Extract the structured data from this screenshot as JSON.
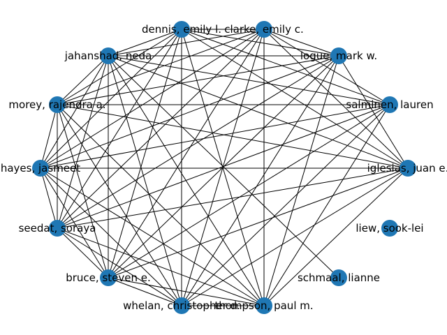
{
  "colors": {
    "node": "#1f77b4",
    "edge": "#000000",
    "label": "#000000",
    "background": "#ffffff"
  },
  "nodes": [
    {
      "id": "dennis",
      "label": "dennis, emily l."
    },
    {
      "id": "clarke",
      "label": "clarke, emily c."
    },
    {
      "id": "jahanshad",
      "label": "jahanshad, neda"
    },
    {
      "id": "logue",
      "label": "logue, mark w."
    },
    {
      "id": "morey",
      "label": "morey, rajendra a."
    },
    {
      "id": "salminen",
      "label": "salminen, lauren"
    },
    {
      "id": "hayes",
      "label": "hayes, jasmeet"
    },
    {
      "id": "iglesias",
      "label": "iglesias, juan e."
    },
    {
      "id": "seedat",
      "label": "seedat, soraya"
    },
    {
      "id": "liew",
      "label": "liew, sook-lei"
    },
    {
      "id": "bruce",
      "label": "bruce, steven e."
    },
    {
      "id": "schmaal",
      "label": "schmaal, lianne"
    },
    {
      "id": "whelan",
      "label": "whelan, christopher d."
    },
    {
      "id": "thompson",
      "label": "thompson, paul m."
    }
  ],
  "edges": [
    [
      "dennis",
      "clarke"
    ],
    [
      "dennis",
      "jahanshad"
    ],
    [
      "dennis",
      "logue"
    ],
    [
      "dennis",
      "morey"
    ],
    [
      "dennis",
      "salminen"
    ],
    [
      "dennis",
      "hayes"
    ],
    [
      "dennis",
      "iglesias"
    ],
    [
      "dennis",
      "seedat"
    ],
    [
      "dennis",
      "bruce"
    ],
    [
      "dennis",
      "whelan"
    ],
    [
      "dennis",
      "thompson"
    ],
    [
      "clarke",
      "jahanshad"
    ],
    [
      "clarke",
      "logue"
    ],
    [
      "clarke",
      "morey"
    ],
    [
      "clarke",
      "salminen"
    ],
    [
      "clarke",
      "hayes"
    ],
    [
      "clarke",
      "iglesias"
    ],
    [
      "clarke",
      "seedat"
    ],
    [
      "clarke",
      "bruce"
    ],
    [
      "clarke",
      "whelan"
    ],
    [
      "clarke",
      "thompson"
    ],
    [
      "jahanshad",
      "logue"
    ],
    [
      "jahanshad",
      "morey"
    ],
    [
      "jahanshad",
      "salminen"
    ],
    [
      "jahanshad",
      "hayes"
    ],
    [
      "jahanshad",
      "iglesias"
    ],
    [
      "jahanshad",
      "seedat"
    ],
    [
      "jahanshad",
      "bruce"
    ],
    [
      "jahanshad",
      "whelan"
    ],
    [
      "jahanshad",
      "thompson"
    ],
    [
      "logue",
      "morey"
    ],
    [
      "logue",
      "hayes"
    ],
    [
      "logue",
      "iglesias"
    ],
    [
      "logue",
      "seedat"
    ],
    [
      "logue",
      "bruce"
    ],
    [
      "logue",
      "whelan"
    ],
    [
      "logue",
      "thompson"
    ],
    [
      "morey",
      "salminen"
    ],
    [
      "morey",
      "hayes"
    ],
    [
      "morey",
      "iglesias"
    ],
    [
      "morey",
      "seedat"
    ],
    [
      "morey",
      "bruce"
    ],
    [
      "morey",
      "whelan"
    ],
    [
      "morey",
      "thompson"
    ],
    [
      "salminen",
      "hayes"
    ],
    [
      "salminen",
      "seedat"
    ],
    [
      "salminen",
      "bruce"
    ],
    [
      "salminen",
      "whelan"
    ],
    [
      "salminen",
      "thompson"
    ],
    [
      "hayes",
      "iglesias"
    ],
    [
      "hayes",
      "seedat"
    ],
    [
      "hayes",
      "bruce"
    ],
    [
      "hayes",
      "whelan"
    ],
    [
      "hayes",
      "thompson"
    ],
    [
      "iglesias",
      "seedat"
    ],
    [
      "iglesias",
      "bruce"
    ],
    [
      "iglesias",
      "whelan"
    ],
    [
      "iglesias",
      "thompson"
    ],
    [
      "seedat",
      "bruce"
    ],
    [
      "seedat",
      "whelan"
    ],
    [
      "seedat",
      "thompson"
    ],
    [
      "bruce",
      "whelan"
    ],
    [
      "bruce",
      "thompson"
    ],
    [
      "whelan",
      "thompson"
    ],
    [
      "jahanshad",
      "schmaal"
    ]
  ]
}
